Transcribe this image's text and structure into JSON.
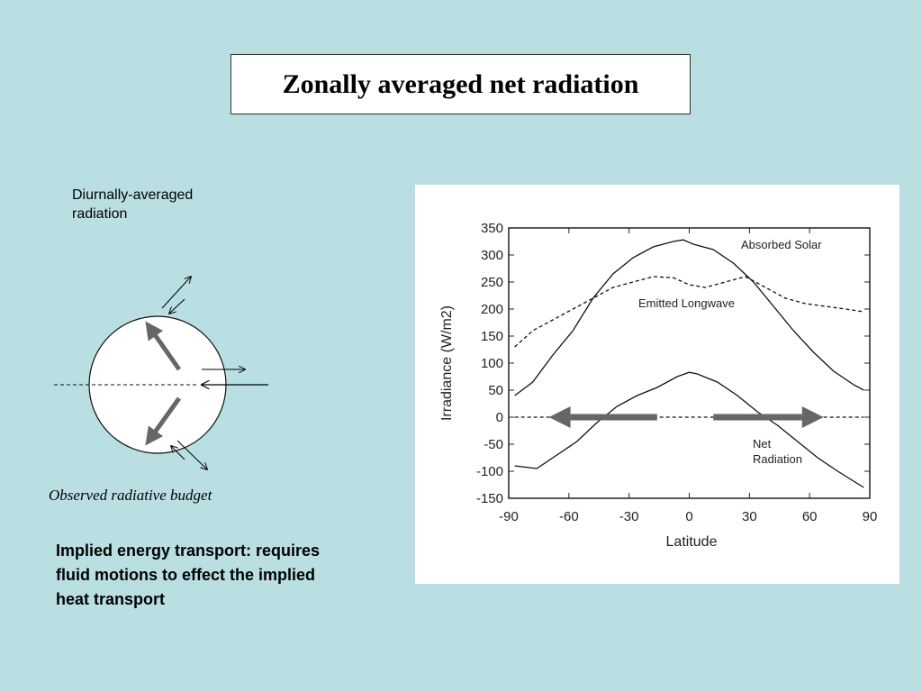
{
  "slide": {
    "title": "Zonally averaged net radiation",
    "diurnal_label": "Diurnally-averaged radiation",
    "budget_caption": "Observed radiative budget",
    "implied_text": "Implied energy transport: requires fluid motions to effect the implied heat transport"
  },
  "colors": {
    "background": "#b9dfe3",
    "arrow_gray": "#666666",
    "curve": "#111111"
  },
  "chart_data": {
    "type": "line",
    "xlabel": "Latitude",
    "ylabel": "Irradiance (W/m2)",
    "xlim": [
      -90,
      90
    ],
    "ylim": [
      -150,
      350
    ],
    "x_ticks": [
      -90,
      -60,
      -30,
      0,
      30,
      60,
      90
    ],
    "y_ticks": [
      350,
      300,
      250,
      200,
      150,
      100,
      50,
      0,
      -50,
      -100,
      -150
    ],
    "grid": false,
    "series": [
      {
        "name": "Absorbed Solar",
        "style": "solid",
        "x": [
          -87,
          -78,
          -68,
          -58,
          -48,
          -38,
          -28,
          -18,
          -8,
          -3,
          2,
          12,
          22,
          32,
          42,
          52,
          62,
          72,
          82,
          87
        ],
        "y": [
          40,
          65,
          115,
          160,
          220,
          265,
          295,
          315,
          325,
          328,
          320,
          310,
          285,
          250,
          205,
          160,
          120,
          85,
          60,
          50
        ]
      },
      {
        "name": "Emitted Longwave",
        "style": "dashed",
        "x": [
          -87,
          -78,
          -68,
          -58,
          -48,
          -38,
          -28,
          -18,
          -8,
          0,
          8,
          18,
          28,
          38,
          48,
          58,
          68,
          78,
          87
        ],
        "y": [
          130,
          160,
          180,
          200,
          220,
          240,
          250,
          260,
          258,
          245,
          240,
          250,
          260,
          240,
          220,
          210,
          205,
          200,
          195
        ]
      },
      {
        "name": "Net Radiation",
        "style": "solid",
        "x": [
          -87,
          -76,
          -66,
          -56,
          -46,
          -36,
          -26,
          -16,
          -6,
          0,
          4,
          14,
          24,
          34,
          44,
          54,
          64,
          74,
          87
        ],
        "y": [
          -90,
          -95,
          -70,
          -45,
          -10,
          20,
          40,
          55,
          75,
          83,
          80,
          65,
          40,
          10,
          -15,
          -45,
          -75,
          -100,
          -130
        ]
      },
      {
        "name": "zero",
        "style": "dashed",
        "x": [
          -87,
          87
        ],
        "y": [
          0,
          0
        ]
      }
    ],
    "annotations": {
      "absorbed": "Absorbed Solar",
      "emitted": "Emitted Longwave",
      "net_line1": "Net",
      "net_line2": "Radiation"
    }
  }
}
